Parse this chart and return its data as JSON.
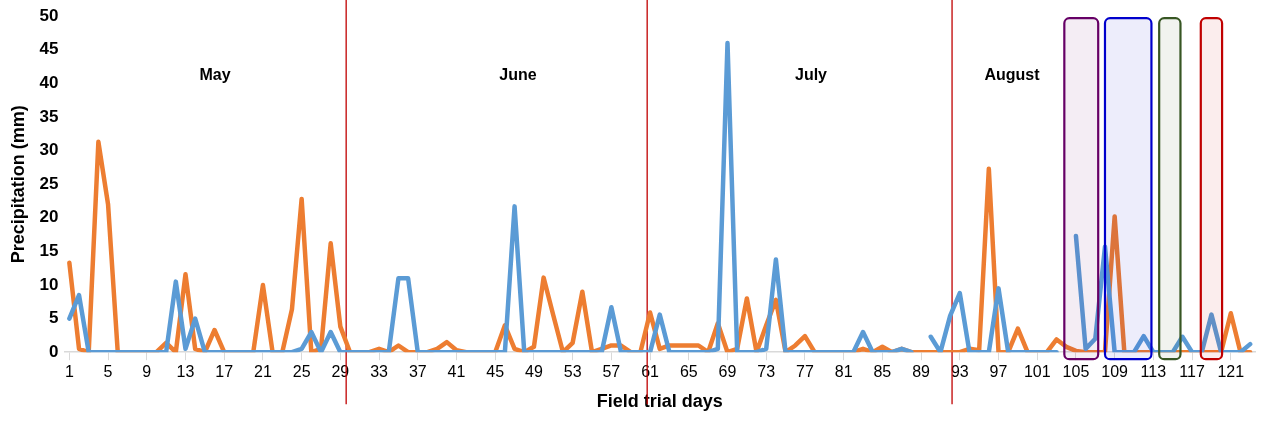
{
  "chart_data": {
    "type": "line",
    "xlabel": "Field trial days",
    "ylabel": "Precipitation (mm)",
    "x": [
      1,
      2,
      3,
      4,
      5,
      6,
      7,
      8,
      9,
      10,
      11,
      12,
      13,
      14,
      15,
      16,
      17,
      18,
      19,
      20,
      21,
      22,
      23,
      24,
      25,
      26,
      27,
      28,
      29,
      30,
      31,
      32,
      33,
      34,
      35,
      36,
      37,
      38,
      39,
      40,
      41,
      42,
      43,
      44,
      45,
      46,
      47,
      48,
      49,
      50,
      51,
      52,
      53,
      54,
      55,
      56,
      57,
      58,
      59,
      60,
      61,
      62,
      63,
      64,
      65,
      66,
      67,
      68,
      69,
      70,
      71,
      72,
      73,
      74,
      75,
      76,
      77,
      78,
      79,
      80,
      81,
      82,
      83,
      84,
      85,
      86,
      87,
      88,
      89,
      90,
      91,
      92,
      93,
      94,
      95,
      96,
      97,
      98,
      99,
      100,
      101,
      102,
      103,
      104,
      105,
      106,
      107,
      108,
      109,
      110,
      111,
      112,
      113,
      114,
      115,
      116,
      117,
      118,
      119,
      120,
      121,
      122,
      123
    ],
    "series": [
      {
        "color": "#5b9bd5",
        "values": [
          5,
          8.5,
          0,
          0,
          0,
          0,
          0,
          0,
          0,
          0,
          0,
          10.5,
          0.5,
          5,
          0,
          0,
          0,
          0,
          0,
          0,
          0,
          0,
          0,
          0,
          0.5,
          3,
          0,
          3,
          0,
          0,
          0,
          0,
          0,
          0,
          11,
          11,
          0,
          0,
          0,
          0,
          0,
          0,
          0,
          0,
          0,
          0,
          21.7,
          0,
          0,
          0,
          0,
          0,
          0,
          0,
          0,
          0,
          6.7,
          0,
          0,
          0,
          0,
          5.6,
          0,
          0,
          0,
          0,
          0,
          0.5,
          46,
          0,
          0,
          0,
          0.5,
          13.8,
          0,
          0,
          0,
          0,
          0,
          0,
          0,
          0,
          3,
          0,
          0,
          0,
          0.5,
          0,
          null,
          2.3,
          0,
          5.4,
          8.8,
          0,
          0,
          0,
          9.5,
          0,
          0,
          0,
          0,
          0,
          0,
          null,
          17.3,
          0.5,
          2,
          15.7,
          0,
          0,
          0,
          2.4,
          0,
          0,
          0,
          2.3,
          0,
          0,
          5.6,
          0,
          0,
          0,
          1.2
        ]
      },
      {
        "color": "#ed7d31",
        "values": [
          13.3,
          0.5,
          0,
          31.3,
          22,
          0,
          0,
          0,
          0,
          0,
          1.4,
          0,
          11.6,
          0.5,
          0,
          3.3,
          0,
          0,
          0,
          0,
          10,
          0,
          0,
          6.4,
          22.8,
          0,
          0.5,
          16.2,
          3.8,
          0,
          0,
          0,
          0.5,
          0,
          1,
          0,
          0,
          0,
          0.5,
          1.5,
          0.3,
          0,
          0,
          0,
          0,
          4,
          0.5,
          0,
          0.8,
          11.1,
          5.5,
          0,
          1.4,
          9,
          0,
          0.5,
          1,
          1,
          0,
          0,
          5.9,
          0.5,
          1,
          1,
          1,
          1,
          0,
          4.3,
          0,
          0.5,
          8,
          0,
          4,
          7.8,
          0,
          1,
          2.4,
          0,
          0,
          0,
          0,
          0,
          0.5,
          0,
          0.8,
          0,
          0.5,
          0,
          0,
          0,
          0,
          0,
          0,
          0.5,
          0.3,
          27.3,
          0,
          0,
          3.5,
          0,
          0,
          0,
          1.9,
          0.8,
          0.2,
          0,
          0,
          0,
          20.2,
          0,
          0,
          0,
          0,
          0,
          0,
          0,
          0,
          0,
          0,
          0,
          5.8,
          0,
          0
        ]
      }
    ],
    "xlim": [
      0.5,
      123.5
    ],
    "xticks": [
      1,
      5,
      9,
      13,
      17,
      21,
      25,
      29,
      33,
      37,
      41,
      45,
      49,
      53,
      57,
      61,
      65,
      69,
      73,
      77,
      81,
      85,
      89,
      93,
      97,
      101,
      105,
      109,
      113,
      117,
      121
    ],
    "ylim": [
      0,
      50
    ],
    "yticks": [
      0,
      5,
      10,
      15,
      20,
      25,
      30,
      35,
      40,
      45,
      50
    ],
    "grid": false,
    "legend": false,
    "marker": "none",
    "line_style": "solid",
    "ref_lines": [
      {
        "axis": "x",
        "value": 29.6,
        "color": "#c00000"
      },
      {
        "axis": "x",
        "value": 60.7,
        "color": "#c00000"
      },
      {
        "axis": "x",
        "value": 92.2,
        "color": "#c00000"
      }
    ],
    "bands": [
      {
        "axis": "x",
        "from": 103.8,
        "to": 107.3,
        "color": "#660066"
      },
      {
        "axis": "x",
        "from": 108,
        "to": 112.8,
        "color": "#0000cc"
      },
      {
        "axis": "x",
        "from": 113.6,
        "to": 115.8,
        "color": "#375623"
      },
      {
        "axis": "x",
        "from": 117.9,
        "to": 120.1,
        "color": "#c00000"
      }
    ],
    "annotations": [
      "May",
      "June",
      "July",
      "August"
    ]
  }
}
